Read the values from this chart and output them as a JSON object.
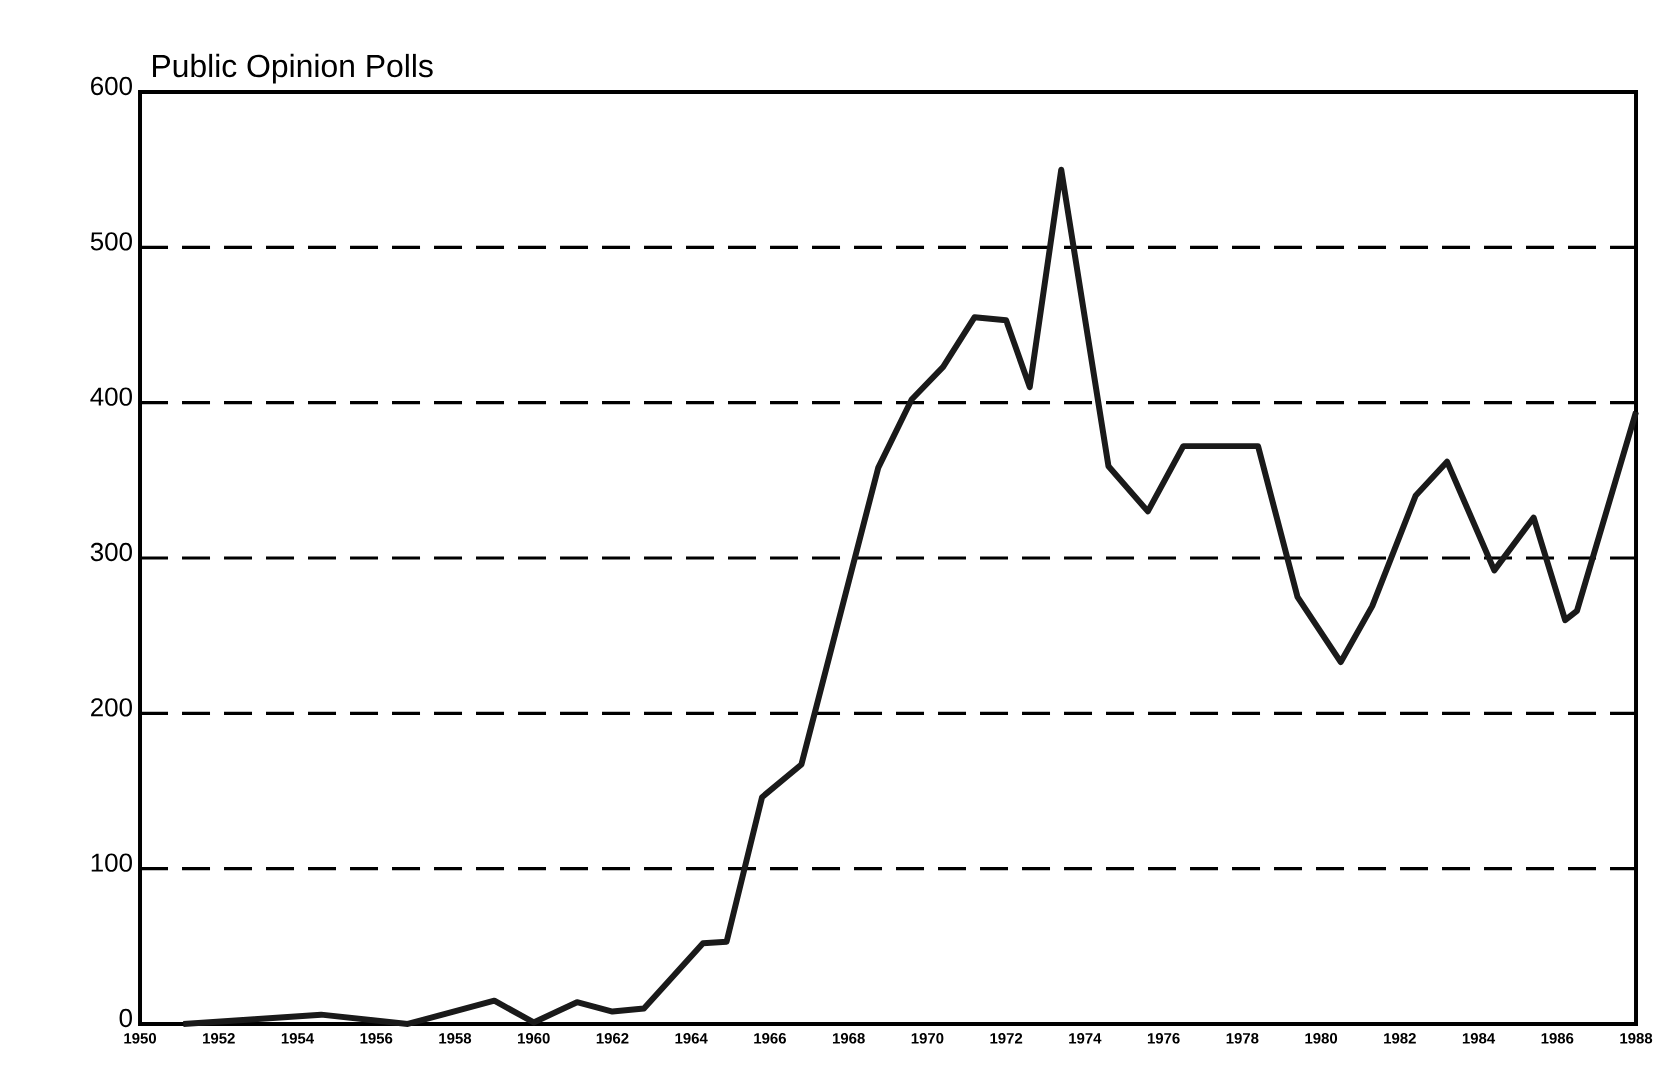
{
  "chart_data": {
    "type": "line",
    "title": "Public Opinion Polls",
    "x": [
      1951.1,
      1952.9,
      1954.6,
      1956.8,
      1959.0,
      1960.0,
      1961.1,
      1962.0,
      1962.8,
      1964.3,
      1964.9,
      1965.8,
      1966.8,
      1968.75,
      1969.6,
      1970.4,
      1971.2,
      1972.0,
      1972.6,
      1973.4,
      1974.6,
      1975.6,
      1976.5,
      1978.4,
      1979.4,
      1980.5,
      1981.3,
      1982.4,
      1983.2,
      1984.4,
      1985.4,
      1986.2,
      1986.5,
      1988.0
    ],
    "series": [
      {
        "color": "#1a1a1a",
        "values": [
          0,
          3,
          6,
          0,
          15,
          1,
          14,
          8,
          10,
          52,
          53,
          146,
          167,
          358,
          402,
          423,
          455,
          453,
          410,
          550,
          359,
          330,
          372,
          372,
          275,
          233,
          269,
          340,
          362,
          292,
          326,
          260,
          266,
          394
        ]
      }
    ],
    "xlim": [
      1950,
      1988
    ],
    "ylim": [
      0,
      600
    ],
    "xticks": [
      1950,
      1952,
      1954,
      1956,
      1958,
      1960,
      1962,
      1964,
      1966,
      1968,
      1970,
      1972,
      1974,
      1976,
      1978,
      1980,
      1982,
      1984,
      1986,
      1988
    ],
    "yticks": [
      0,
      100,
      200,
      300,
      400,
      500,
      600
    ],
    "grid": "y",
    "marker": "none",
    "line_style": "solid"
  }
}
